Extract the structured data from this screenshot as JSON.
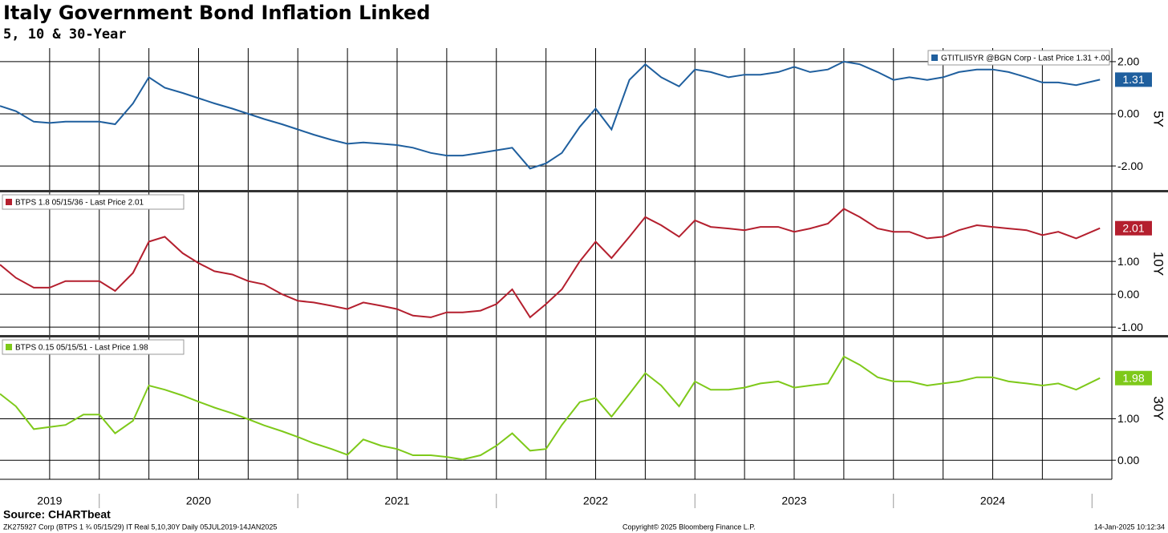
{
  "chart_data": [
    {
      "type": "line",
      "title": "Italy Government Bond Inflation Linked",
      "subtitle": "5, 10 & 30-Year",
      "ylabel": "5Y",
      "legend": "upper right",
      "grid": true,
      "x": [
        2019.5,
        2019.58,
        2019.67,
        2019.75,
        2019.83,
        2019.92,
        2020,
        2020.08,
        2020.17,
        2020.25,
        2020.33,
        2020.42,
        2020.5,
        2020.58,
        2020.67,
        2020.75,
        2020.83,
        2020.92,
        2021,
        2021.08,
        2021.17,
        2021.25,
        2021.33,
        2021.42,
        2021.5,
        2021.58,
        2021.67,
        2021.75,
        2021.83,
        2021.92,
        2022,
        2022.08,
        2022.17,
        2022.25,
        2022.33,
        2022.42,
        2022.5,
        2022.58,
        2022.67,
        2022.75,
        2022.83,
        2022.92,
        2023,
        2023.08,
        2023.17,
        2023.25,
        2023.33,
        2023.42,
        2023.5,
        2023.58,
        2023.67,
        2023.75,
        2023.83,
        2023.92,
        2024,
        2024.08,
        2024.17,
        2024.25,
        2024.33,
        2024.42,
        2024.5,
        2024.58,
        2024.67,
        2024.75,
        2024.83,
        2024.92,
        2025.04
      ],
      "xlim": [
        2019.5,
        2025.1
      ],
      "ylim": [
        -2.92,
        2.52
      ],
      "yticks": [
        {
          "value": -2,
          "label": "-2.00"
        },
        {
          "value": 0,
          "label": "0.00"
        },
        {
          "value": 2,
          "label": "2.00"
        }
      ],
      "series": [
        {
          "name": "GTITLII5YR @BGN Corp - Last Price 1.31 +.00",
          "color": "#1f5f9e",
          "values": [
            0.3,
            0.1,
            -0.3,
            -0.35,
            -0.3,
            -0.3,
            -0.3,
            -0.4,
            0.4,
            1.4,
            1.0,
            0.8,
            0.6,
            0.4,
            0.2,
            0.0,
            -0.2,
            -0.4,
            -0.6,
            -0.8,
            -1.0,
            -1.15,
            -1.1,
            -1.15,
            -1.2,
            -1.3,
            -1.5,
            -1.6,
            -1.6,
            -1.5,
            -1.4,
            -1.3,
            -2.1,
            -1.9,
            -1.5,
            -0.5,
            0.2,
            -0.6,
            1.3,
            1.9,
            1.4,
            1.05,
            1.7,
            1.6,
            1.4,
            1.5,
            1.5,
            1.6,
            1.8,
            1.6,
            1.7,
            2.0,
            1.9,
            1.6,
            1.3,
            1.4,
            1.3,
            1.4,
            1.6,
            1.7,
            1.7,
            1.6,
            1.4,
            1.2,
            1.2,
            1.1,
            1.31
          ]
        }
      ]
    },
    {
      "type": "line",
      "ylabel": "10Y",
      "legend": "upper left",
      "grid": true,
      "x": [
        2019.5,
        2019.58,
        2019.67,
        2019.75,
        2019.83,
        2019.92,
        2020,
        2020.08,
        2020.17,
        2020.25,
        2020.33,
        2020.42,
        2020.5,
        2020.58,
        2020.67,
        2020.75,
        2020.83,
        2020.92,
        2021,
        2021.08,
        2021.17,
        2021.25,
        2021.33,
        2021.42,
        2021.5,
        2021.58,
        2021.67,
        2021.75,
        2021.83,
        2021.92,
        2022,
        2022.08,
        2022.17,
        2022.25,
        2022.33,
        2022.42,
        2022.5,
        2022.58,
        2022.67,
        2022.75,
        2022.83,
        2022.92,
        2023,
        2023.08,
        2023.17,
        2023.25,
        2023.33,
        2023.42,
        2023.5,
        2023.58,
        2023.67,
        2023.75,
        2023.83,
        2023.92,
        2024,
        2024.08,
        2024.17,
        2024.25,
        2024.33,
        2024.42,
        2024.5,
        2024.58,
        2024.67,
        2024.75,
        2024.83,
        2024.92,
        2025.04
      ],
      "xlim": [
        2019.5,
        2025.1
      ],
      "ylim": [
        -1.24,
        3.1
      ],
      "yticks": [
        {
          "value": -1,
          "label": "-1.00"
        },
        {
          "value": 0,
          "label": "0.00"
        },
        {
          "value": 1,
          "label": "1.00"
        }
      ],
      "series": [
        {
          "name": "BTPS 1.8 05/15/36 - Last Price 2.01",
          "color": "#b41f2e",
          "values": [
            0.9,
            0.5,
            0.2,
            0.2,
            0.4,
            0.4,
            0.4,
            0.1,
            0.65,
            1.6,
            1.75,
            1.25,
            0.95,
            0.7,
            0.6,
            0.4,
            0.3,
            0.0,
            -0.2,
            -0.25,
            -0.35,
            -0.45,
            -0.25,
            -0.35,
            -0.45,
            -0.65,
            -0.7,
            -0.55,
            -0.55,
            -0.5,
            -0.3,
            0.15,
            -0.7,
            -0.3,
            0.15,
            1.0,
            1.6,
            1.1,
            1.75,
            2.35,
            2.1,
            1.75,
            2.25,
            2.05,
            2.0,
            1.95,
            2.05,
            2.05,
            1.9,
            2.0,
            2.15,
            2.6,
            2.35,
            2.0,
            1.9,
            1.9,
            1.7,
            1.75,
            1.95,
            2.1,
            2.05,
            2.0,
            1.95,
            1.8,
            1.9,
            1.7,
            2.01
          ]
        }
      ]
    },
    {
      "type": "line",
      "ylabel": "30Y",
      "legend": "upper left",
      "grid": true,
      "x": [
        2019.5,
        2019.58,
        2019.67,
        2019.75,
        2019.83,
        2019.92,
        2020,
        2020.08,
        2020.17,
        2020.25,
        2020.33,
        2020.42,
        2020.5,
        2020.58,
        2020.67,
        2020.75,
        2020.83,
        2020.92,
        2021,
        2021.08,
        2021.17,
        2021.25,
        2021.33,
        2021.42,
        2021.5,
        2021.58,
        2021.67,
        2021.75,
        2021.83,
        2021.92,
        2022,
        2022.08,
        2022.17,
        2022.25,
        2022.33,
        2022.42,
        2022.5,
        2022.58,
        2022.67,
        2022.75,
        2022.83,
        2022.92,
        2023,
        2023.08,
        2023.17,
        2023.25,
        2023.33,
        2023.42,
        2023.5,
        2023.58,
        2023.67,
        2023.75,
        2023.83,
        2023.92,
        2024,
        2024.08,
        2024.17,
        2024.25,
        2024.33,
        2024.42,
        2024.5,
        2024.58,
        2024.67,
        2024.75,
        2024.83,
        2024.92,
        2025.04
      ],
      "xlim": [
        2019.5,
        2025.1
      ],
      "ylim": [
        -0.46,
        2.96
      ],
      "yticks": [
        {
          "value": 0,
          "label": "0.00"
        },
        {
          "value": 1,
          "label": "1.00"
        }
      ],
      "years": [
        2019,
        2020,
        2021,
        2022,
        2023,
        2024
      ],
      "series": [
        {
          "name": "BTPS 0.15 05/15/51 - Last Price 1.98",
          "color": "#7ec91a",
          "values": [
            1.6,
            1.3,
            0.75,
            0.8,
            0.85,
            1.1,
            1.1,
            0.65,
            0.95,
            1.8,
            1.7,
            1.56,
            1.41,
            1.27,
            1.13,
            0.99,
            0.84,
            0.7,
            0.56,
            0.41,
            0.27,
            0.13,
            0.5,
            0.35,
            0.27,
            0.12,
            0.12,
            0.08,
            0.02,
            0.12,
            0.35,
            0.65,
            0.23,
            0.27,
            0.85,
            1.4,
            1.5,
            1.05,
            1.6,
            2.1,
            1.8,
            1.3,
            1.9,
            1.7,
            1.7,
            1.75,
            1.85,
            1.9,
            1.75,
            1.8,
            1.85,
            2.5,
            2.3,
            2.0,
            1.9,
            1.9,
            1.8,
            1.85,
            1.9,
            2.0,
            2.0,
            1.9,
            1.85,
            1.8,
            1.85,
            1.7,
            1.98
          ]
        }
      ]
    }
  ],
  "footer": {
    "source": "Source: CHARTbeat",
    "ticker": "ZK275927 Corp (BTPS 1 ¾ 05/15/29) IT Real 5,10,30Y  Daily 05JUL2019-14JAN2025",
    "copyright": "Copyright© 2025 Bloomberg Finance L.P.",
    "timestamp": "14-Jan-2025 10:12:34"
  }
}
